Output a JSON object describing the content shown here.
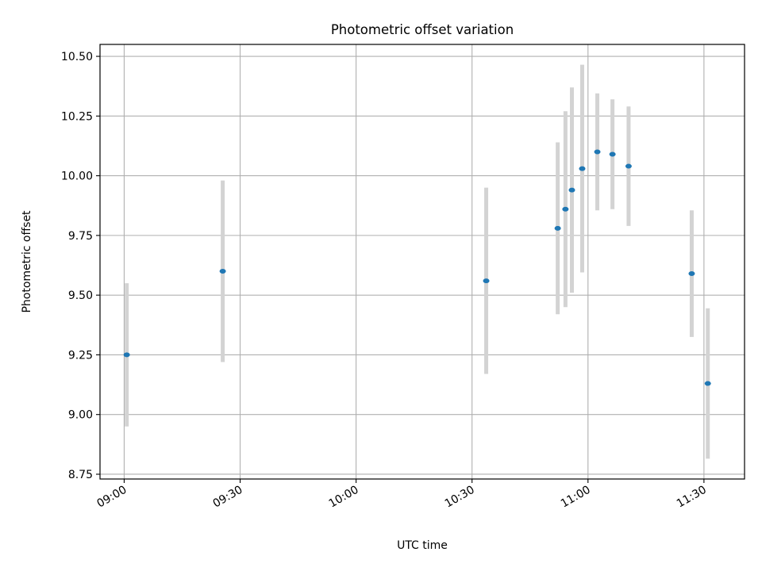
{
  "chart_data": {
    "type": "scatter",
    "title": "Photometric offset variation",
    "xlabel": "UTC time",
    "ylabel": "Photometric offset",
    "x_ticks": [
      "09:00",
      "09:30",
      "10:00",
      "10:30",
      "11:00",
      "11:30"
    ],
    "y_ticks": [
      "8.75",
      "9.00",
      "9.25",
      "9.50",
      "9.75",
      "10.00",
      "10.25",
      "10.50"
    ],
    "xlim": [
      "08:53:45",
      "11:40:30"
    ],
    "ylim": [
      8.73,
      10.55
    ],
    "grid": true,
    "points": [
      {
        "x": "09:00:40",
        "y": 9.25,
        "err": 0.3
      },
      {
        "x": "09:25:30",
        "y": 9.6,
        "err": 0.38
      },
      {
        "x": "10:33:40",
        "y": 9.56,
        "err": 0.39
      },
      {
        "x": "10:52:10",
        "y": 9.78,
        "err": 0.36
      },
      {
        "x": "10:54:10",
        "y": 9.86,
        "err": 0.41
      },
      {
        "x": "10:55:50",
        "y": 9.94,
        "err": 0.43
      },
      {
        "x": "10:58:30",
        "y": 10.03,
        "err": 0.435
      },
      {
        "x": "11:02:25",
        "y": 10.1,
        "err": 0.245
      },
      {
        "x": "11:06:20",
        "y": 10.09,
        "err": 0.23
      },
      {
        "x": "11:10:30",
        "y": 10.04,
        "err": 0.25
      },
      {
        "x": "11:26:50",
        "y": 9.59,
        "err": 0.265
      },
      {
        "x": "11:31:00",
        "y": 9.13,
        "err": 0.315
      }
    ],
    "colors": {
      "marker": "#1f77b4",
      "errorbar": "#d3d3d3",
      "grid": "#b0b0b0"
    }
  }
}
